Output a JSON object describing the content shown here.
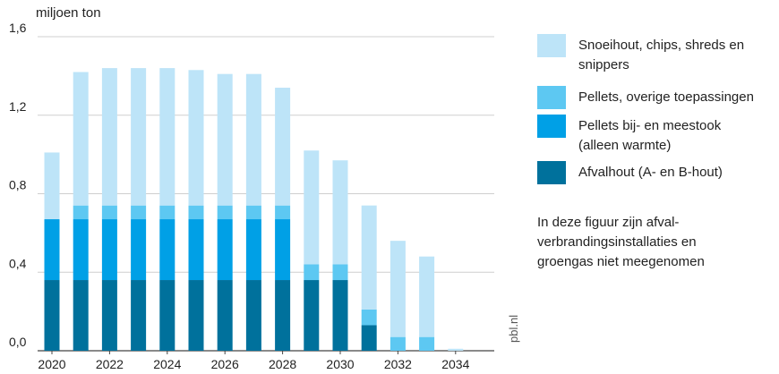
{
  "chart_data": {
    "type": "bar",
    "stacked": true,
    "unit_label": "miljoen ton",
    "categories": [
      "2020",
      "2021",
      "2022",
      "2023",
      "2024",
      "2025",
      "2026",
      "2027",
      "2028",
      "2029",
      "2030",
      "2031",
      "2032",
      "2033",
      "2034"
    ],
    "x_tick_labels": [
      "2020",
      "2022",
      "2024",
      "2026",
      "2028",
      "2030",
      "2032",
      "2034"
    ],
    "y_tick_labels": [
      "0,0",
      "0,4",
      "0,8",
      "1,2",
      "1,6"
    ],
    "ylim": [
      0,
      1.6
    ],
    "grid": true,
    "legend_position": "right",
    "series": [
      {
        "name": "Afvalhout (A- en B-hout)",
        "color": "#00719c",
        "values": [
          0.36,
          0.36,
          0.36,
          0.36,
          0.36,
          0.36,
          0.36,
          0.36,
          0.36,
          0.36,
          0.36,
          0.13,
          0,
          0,
          0
        ]
      },
      {
        "name": "Pellets bij- en meestook\n(alleen warmte)",
        "color": "#00a0e6",
        "values": [
          0.31,
          0.31,
          0.31,
          0.31,
          0.31,
          0.31,
          0.31,
          0.31,
          0.31,
          0,
          0,
          0,
          0,
          0,
          0
        ]
      },
      {
        "name": "Pellets, overige toepassingen",
        "color": "#5dc8f2",
        "values": [
          0,
          0.07,
          0.07,
          0.07,
          0.07,
          0.07,
          0.07,
          0.07,
          0.07,
          0.08,
          0.08,
          0.08,
          0.07,
          0.07,
          0
        ]
      },
      {
        "name": "Snoeihout, chips, shreds en\nsnippers",
        "color": "#bde4f8",
        "values": [
          0.34,
          0.68,
          0.7,
          0.7,
          0.7,
          0.69,
          0.67,
          0.67,
          0.6,
          0.58,
          0.53,
          0.53,
          0.49,
          0.41,
          0.01
        ]
      }
    ]
  },
  "legend_order": [
    3,
    2,
    1,
    0
  ],
  "note": "In deze figuur zijn afval-\nverbrandingsinstallaties en\ngroengas niet meegenomen",
  "source": "pbl.nl"
}
